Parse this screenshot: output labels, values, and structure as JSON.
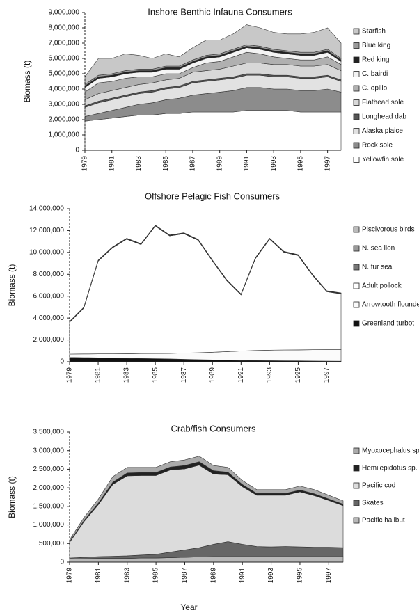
{
  "chart_data": [
    {
      "type": "area",
      "title": "Inshore Benthic Infauna Consumers",
      "ylabel": "Biomass (t)",
      "x": [
        1979,
        1980,
        1981,
        1982,
        1983,
        1984,
        1985,
        1986,
        1987,
        1988,
        1989,
        1990,
        1991,
        1992,
        1993,
        1994,
        1995,
        1996,
        1997,
        1998
      ],
      "xlim": [
        1979,
        1998
      ],
      "xticks": [
        1979,
        1981,
        1983,
        1985,
        1987,
        1989,
        1991,
        1993,
        1995,
        1997
      ],
      "ylim": [
        0,
        9000000
      ],
      "yticks": [
        0,
        {
          "value": 1000000,
          "label": "1,000,000"
        },
        {
          "value": 2000000,
          "label": "2,000,000"
        },
        {
          "value": 3000000,
          "label": "3,000,000"
        },
        {
          "value": 4000000,
          "label": "4,000,000"
        },
        {
          "value": 5000000,
          "label": "5,000,000"
        },
        {
          "value": 6000000,
          "label": "6,000,000"
        },
        {
          "value": 7000000,
          "label": "7,000,000"
        },
        {
          "value": 8000000,
          "label": "8,000,000"
        },
        {
          "value": 9000000,
          "label": "9,000,000"
        }
      ],
      "series": [
        {
          "name": "Starfish",
          "color": "#c8c8c8",
          "values": [
            500000,
            1100000,
            1000000,
            1100000,
            900000,
            700000,
            800000,
            600000,
            800000,
            1000000,
            900000,
            1000000,
            1300000,
            1200000,
            1100000,
            1100000,
            1200000,
            1300000,
            1400000,
            1000000
          ]
        },
        {
          "name": "Blue king",
          "color": "#9a9a9a",
          "values": [
            100000,
            100000,
            100000,
            100000,
            100000,
            100000,
            100000,
            100000,
            100000,
            100000,
            100000,
            100000,
            100000,
            100000,
            100000,
            100000,
            100000,
            100000,
            100000,
            100000
          ]
        },
        {
          "name": "Red king",
          "color": "#222222",
          "values": [
            100000,
            100000,
            100000,
            100000,
            100000,
            100000,
            100000,
            100000,
            100000,
            100000,
            100000,
            100000,
            100000,
            100000,
            100000,
            100000,
            100000,
            100000,
            100000,
            100000
          ]
        },
        {
          "name": "C. bairdi",
          "color": "#f4f4f4",
          "values": [
            300000,
            300000,
            300000,
            300000,
            300000,
            300000,
            300000,
            300000,
            300000,
            300000,
            300000,
            300000,
            300000,
            300000,
            300000,
            300000,
            300000,
            300000,
            300000,
            200000
          ]
        },
        {
          "name": "C. opilio",
          "color": "#b0b0b0",
          "values": [
            500000,
            700000,
            600000,
            600000,
            500000,
            400000,
            400000,
            300000,
            300000,
            500000,
            500000,
            600000,
            700000,
            600000,
            500000,
            400000,
            400000,
            400000,
            500000,
            400000
          ]
        },
        {
          "name": "Flathead sole",
          "color": "#d8d8d8",
          "values": [
            400000,
            500000,
            500000,
            500000,
            500000,
            500000,
            500000,
            500000,
            600000,
            600000,
            600000,
            700000,
            700000,
            700000,
            700000,
            700000,
            700000,
            700000,
            700000,
            600000
          ]
        },
        {
          "name": "Longhead dab",
          "color": "#555555",
          "values": [
            100000,
            100000,
            100000,
            100000,
            100000,
            100000,
            100000,
            100000,
            100000,
            100000,
            100000,
            100000,
            100000,
            100000,
            100000,
            100000,
            100000,
            100000,
            100000,
            100000
          ]
        },
        {
          "name": "Alaska plaice",
          "color": "#e2e2e2",
          "values": [
            600000,
            700000,
            700000,
            700000,
            700000,
            700000,
            700000,
            700000,
            800000,
            800000,
            800000,
            800000,
            800000,
            800000,
            800000,
            800000,
            800000,
            800000,
            800000,
            700000
          ]
        },
        {
          "name": "Rock sole",
          "color": "#8c8c8c",
          "values": [
            300000,
            400000,
            500000,
            600000,
            700000,
            800000,
            900000,
            1000000,
            1100000,
            1200000,
            1300000,
            1400000,
            1500000,
            1500000,
            1400000,
            1400000,
            1400000,
            1400000,
            1500000,
            1300000
          ]
        },
        {
          "name": "Yellowfin sole",
          "color": "#ffffff",
          "values": [
            1900000,
            2000000,
            2100000,
            2200000,
            2300000,
            2300000,
            2400000,
            2400000,
            2500000,
            2500000,
            2500000,
            2500000,
            2600000,
            2600000,
            2600000,
            2600000,
            2500000,
            2500000,
            2500000,
            2500000
          ]
        }
      ]
    },
    {
      "type": "area",
      "title": "Offshore Pelagic Fish Consumers",
      "ylabel": "Biomass (t)",
      "x": [
        1979,
        1980,
        1981,
        1982,
        1983,
        1984,
        1985,
        1986,
        1987,
        1988,
        1989,
        1990,
        1991,
        1992,
        1993,
        1994,
        1995,
        1996,
        1997,
        1998
      ],
      "xlim": [
        1979,
        1998
      ],
      "xticks": [
        1979,
        1981,
        1983,
        1985,
        1987,
        1989,
        1991,
        1993,
        1995,
        1997
      ],
      "ylim": [
        0,
        14000000
      ],
      "yticks": [
        0,
        {
          "value": 2000000,
          "label": "2,000,000"
        },
        {
          "value": 4000000,
          "label": "4,000,000"
        },
        {
          "value": 6000000,
          "label": "6,000,000"
        },
        {
          "value": 8000000,
          "label": "8,000,000"
        },
        {
          "value": 10000000,
          "label": "10,000,000"
        },
        {
          "value": 12000000,
          "label": "12,000,000"
        },
        {
          "value": 14000000,
          "label": "14,000,000"
        }
      ],
      "series": [
        {
          "name": "Piscivorous birds",
          "color": "#bbbbbb",
          "values": [
            20000,
            20000,
            20000,
            20000,
            20000,
            20000,
            20000,
            20000,
            20000,
            20000,
            20000,
            20000,
            20000,
            20000,
            20000,
            20000,
            20000,
            20000,
            20000,
            20000
          ]
        },
        {
          "name": "N. sea lion",
          "color": "#999999",
          "values": [
            30000,
            30000,
            30000,
            30000,
            30000,
            30000,
            30000,
            30000,
            30000,
            30000,
            30000,
            30000,
            30000,
            30000,
            30000,
            30000,
            30000,
            30000,
            30000,
            30000
          ]
        },
        {
          "name": "N. fur seal",
          "color": "#777777",
          "values": [
            40000,
            40000,
            40000,
            40000,
            40000,
            40000,
            40000,
            40000,
            40000,
            40000,
            40000,
            40000,
            40000,
            40000,
            40000,
            40000,
            40000,
            40000,
            40000,
            40000
          ]
        },
        {
          "name": "Adult pollock",
          "color": "#ffffff",
          "values": [
            2910000,
            4200000,
            8490000,
            9680000,
            10470000,
            9960000,
            11650000,
            10740000,
            10920000,
            10290000,
            8340000,
            6480000,
            5130000,
            8380000,
            10150000,
            8930000,
            8620000,
            6810000,
            5300000,
            5100000
          ]
        },
        {
          "name": "Arrowtooth flounder",
          "color": "#fbfbfb",
          "values": [
            300000,
            330000,
            360000,
            390000,
            420000,
            450000,
            480000,
            510000,
            560000,
            620000,
            700000,
            780000,
            860000,
            920000,
            960000,
            990000,
            1010000,
            1030000,
            1050000,
            1060000
          ]
        },
        {
          "name": "Greenland turbot",
          "color": "#111111",
          "values": [
            400000,
            380000,
            360000,
            340000,
            320000,
            300000,
            280000,
            260000,
            230000,
            200000,
            170000,
            150000,
            120000,
            110000,
            100000,
            90000,
            80000,
            70000,
            60000,
            50000
          ]
        }
      ]
    },
    {
      "type": "area",
      "title": "Crab/fish Consumers",
      "ylabel": "Biomass (t)",
      "xlabel": "Year",
      "x": [
        1979,
        1980,
        1981,
        1982,
        1983,
        1984,
        1985,
        1986,
        1987,
        1988,
        1989,
        1990,
        1991,
        1992,
        1993,
        1994,
        1995,
        1996,
        1997,
        1998
      ],
      "xlim": [
        1979,
        1998
      ],
      "xticks": [
        1979,
        1981,
        1983,
        1985,
        1987,
        1989,
        1991,
        1993,
        1995,
        1997
      ],
      "ylim": [
        0,
        3500000
      ],
      "yticks": [
        0,
        {
          "value": 500000,
          "label": "500,000"
        },
        {
          "value": 1000000,
          "label": "1,000,000"
        },
        {
          "value": 1500000,
          "label": "1,500,000"
        },
        {
          "value": 2000000,
          "label": "2,000,000"
        },
        {
          "value": 2500000,
          "label": "2,500,000"
        },
        {
          "value": 3000000,
          "label": "3,000,000"
        },
        {
          "value": 3500000,
          "label": "3,500,000"
        }
      ],
      "series": [
        {
          "name": "Myoxocephalus sp.",
          "color": "#aaaaaa",
          "values": [
            50000,
            80000,
            110000,
            150000,
            150000,
            140000,
            140000,
            140000,
            150000,
            150000,
            140000,
            130000,
            110000,
            100000,
            100000,
            100000,
            110000,
            110000,
            100000,
            90000
          ]
        },
        {
          "name": "Hemilepidotus sp.",
          "color": "#222222",
          "values": [
            20000,
            30000,
            40000,
            60000,
            80000,
            80000,
            80000,
            80000,
            90000,
            90000,
            90000,
            70000,
            60000,
            50000,
            50000,
            50000,
            50000,
            50000,
            40000,
            40000
          ]
        },
        {
          "name": "Pacific cod",
          "color": "#dcdcdc",
          "values": [
            420000,
            960000,
            1400000,
            1930000,
            2150000,
            2140000,
            2120000,
            2210000,
            2180000,
            2220000,
            1890000,
            1800000,
            1550000,
            1380000,
            1390000,
            1380000,
            1480000,
            1390000,
            1260000,
            1130000
          ]
        },
        {
          "name": "Skates",
          "color": "#666666",
          "values": [
            30000,
            40000,
            50000,
            60000,
            70000,
            80000,
            100000,
            150000,
            200000,
            250000,
            330000,
            400000,
            330000,
            270000,
            260000,
            270000,
            260000,
            250000,
            250000,
            240000
          ]
        },
        {
          "name": "Pacific halibut",
          "color": "#b8b8b8",
          "values": [
            80000,
            90000,
            100000,
            100000,
            100000,
            110000,
            110000,
            120000,
            130000,
            140000,
            150000,
            150000,
            150000,
            150000,
            150000,
            150000,
            150000,
            150000,
            150000,
            150000
          ]
        }
      ]
    }
  ]
}
